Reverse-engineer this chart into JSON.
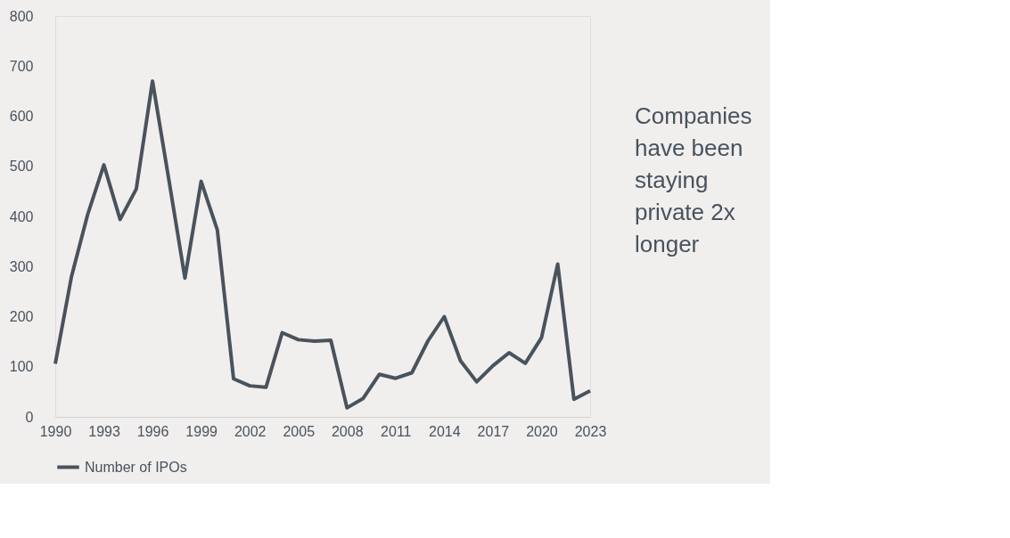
{
  "chart_data": {
    "type": "line",
    "categories": [
      "1990",
      null,
      null,
      "1993",
      null,
      null,
      "1996",
      null,
      null,
      "1999",
      null,
      null,
      "2002",
      null,
      null,
      "2005",
      null,
      null,
      "2008",
      null,
      null,
      "2011",
      null,
      null,
      "2014",
      null,
      null,
      "2017",
      null,
      null,
      "2020",
      null,
      null,
      "2023"
    ],
    "series": [
      {
        "name": "Number of IPOs",
        "color": "#48535c",
        "values": [
          106,
          280,
          404,
          503,
          394,
          455,
          670,
          475,
          277,
          470,
          373,
          76,
          62,
          59,
          168,
          154,
          151,
          153,
          18,
          37,
          85,
          77,
          88,
          152,
          200,
          112,
          70,
          102,
          128,
          107,
          158,
          305,
          35,
          52
        ]
      }
    ],
    "ylim": [
      0,
      800
    ],
    "yticks": [
      0,
      100,
      200,
      300,
      400,
      500,
      600,
      700,
      800
    ],
    "grid": false,
    "legend": "bottom",
    "marker": "none",
    "line_style": "solid",
    "annotations": [
      "Companies have been staying private 2x longer"
    ]
  }
}
